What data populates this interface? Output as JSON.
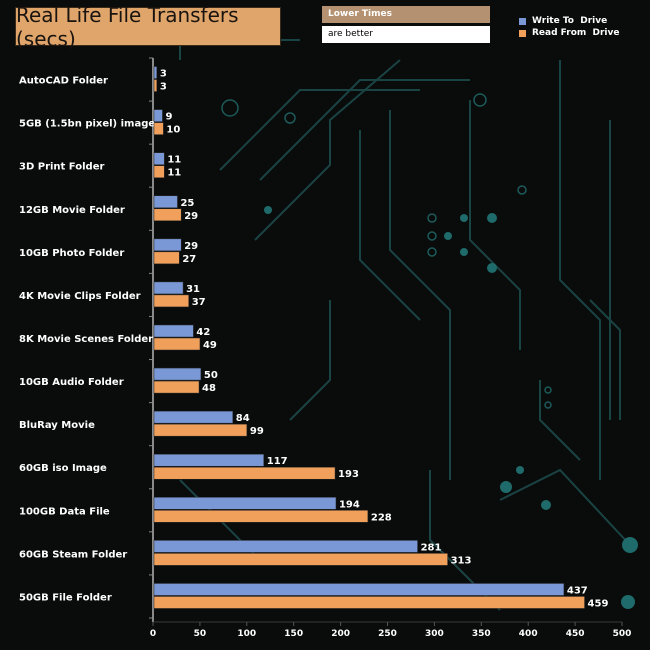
{
  "title": "Real Life File Transfers (secs)",
  "note": {
    "line1": "Lower Times",
    "line2": "are better"
  },
  "colors": {
    "write": "#7b98d6",
    "read": "#f0a05a",
    "axis": "#8a8a8a",
    "background": "#0a0b0b"
  },
  "chart_data": {
    "type": "bar",
    "orientation": "horizontal",
    "categories": [
      "AutoCAD Folder",
      "5GB (1.5bn pixel) image",
      "3D Print Folder",
      "12GB Movie Folder",
      "10GB Photo Folder",
      "4K Movie Clips Folder",
      "8K Movie Scenes Folder",
      "10GB Audio Folder",
      "BluRay Movie",
      "60GB iso Image",
      "100GB Data File",
      "60GB Steam Folder",
      "50GB File Folder"
    ],
    "series": [
      {
        "name": "Write To  Drive",
        "values": [
          3,
          9,
          11,
          25,
          29,
          31,
          42,
          50,
          84,
          117,
          194,
          281,
          437
        ]
      },
      {
        "name": "Read From  Drive",
        "values": [
          3,
          10,
          11,
          29,
          27,
          37,
          49,
          48,
          99,
          193,
          228,
          313,
          459
        ]
      }
    ],
    "xlim": [
      0,
      500
    ],
    "xticks": [
      0,
      50,
      100,
      150,
      200,
      250,
      300,
      350,
      400,
      450,
      500
    ],
    "legend_position": "top-right",
    "grid": false
  }
}
